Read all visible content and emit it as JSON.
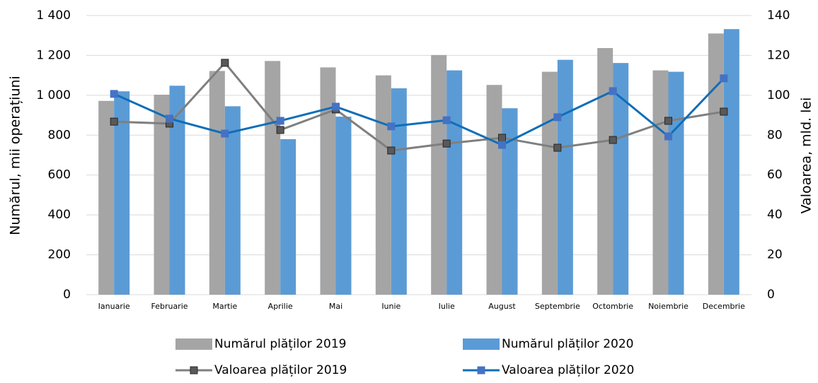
{
  "chart_data": {
    "type": "bar",
    "categories": [
      "Ianuarie",
      "Februarie",
      "Martie",
      "Aprilie",
      "Mai",
      "Iunie",
      "Iulie",
      "August",
      "Septembrie",
      "Octombrie",
      "Noiembrie",
      "Decembrie"
    ],
    "series": [
      {
        "name": "Numărul plăților 2019",
        "type": "bar",
        "color": "#a5a5a5",
        "values": [
          972,
          1003,
          1122,
          1172,
          1140,
          1100,
          1202,
          1052,
          1118,
          1237,
          1125,
          1310
        ]
      },
      {
        "name": "Numărul plăților 2020",
        "type": "bar",
        "color": "#5b9bd5",
        "values": [
          1020,
          1048,
          945,
          780,
          893,
          1035,
          1125,
          935,
          1178,
          1162,
          1118,
          1332
        ]
      },
      {
        "name": "Valoarea plăților 2019",
        "type": "line",
        "axis": "y2",
        "color": "#7f7f7f",
        "marker_color": "#595959",
        "values": [
          86.8,
          85.8,
          116.3,
          82.6,
          92.9,
          72.3,
          75.8,
          78.7,
          73.7,
          77.6,
          87.2,
          91.8
        ]
      },
      {
        "name": "Valoarea plăților 2020",
        "type": "line",
        "axis": "y2",
        "color": "#0e6eb8",
        "marker_color": "#4472c4",
        "values": [
          100.7,
          88.3,
          80.8,
          87.2,
          94.3,
          84.4,
          87.5,
          75.1,
          89.0,
          102.1,
          79.4,
          108.5
        ]
      }
    ],
    "ylabel": "Numărul, mii operațiuni",
    "y2label": "Valoarea, mld. lei",
    "ylim": [
      0,
      1400
    ],
    "yticks": [
      0,
      200,
      400,
      600,
      800,
      {
        "value": 1000,
        "label": "1 000"
      },
      {
        "value": 1200,
        "label": "1 200"
      },
      {
        "value": 1400,
        "label": "1 400"
      }
    ],
    "y2lim": [
      0,
      140
    ],
    "y2ticks": [
      0,
      20,
      40,
      60,
      80,
      100,
      120,
      140
    ],
    "grid": true
  }
}
